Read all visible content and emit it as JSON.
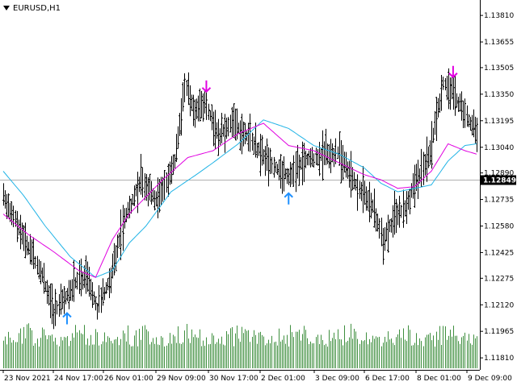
{
  "chart": {
    "symbol_label": "EURUSD,H1",
    "current_price": "1.12849",
    "price_axis_labels": [
      "1.13810",
      "1.13655",
      "1.13505",
      "1.13350",
      "1.13195",
      "1.13040",
      "1.12890",
      "1.12735",
      "1.12580",
      "1.12425",
      "1.12275",
      "1.12120",
      "1.11965",
      "1.11810"
    ],
    "time_axis_labels": [
      "23 Nov 2021",
      "24 Nov 17:00",
      "26 Nov 01:00",
      "29 Nov 09:00",
      "30 Nov 17:00",
      "2 Dec 01:00",
      "3 Dec 09:00",
      "6 Dec 17:00",
      "8 Dec 01:00",
      "9 Dec 09:00"
    ],
    "signals": [
      {
        "type": "buy",
        "label": "buy-arrow",
        "color": "#1e90ff"
      },
      {
        "type": "buy",
        "label": "buy-arrow",
        "color": "#1e90ff"
      },
      {
        "type": "sell",
        "label": "sell-arrow",
        "color": "#e100e1"
      },
      {
        "type": "sell",
        "label": "sell-arrow",
        "color": "#e100e1"
      }
    ],
    "colors": {
      "bars": "#000000",
      "volume": "#3f8f3f",
      "ma_fast": "#e000e0",
      "ma_slow": "#22b4e6",
      "price_line": "#b0b0b0",
      "price_box_bg": "#000000",
      "price_box_fg": "#ffffff"
    }
  },
  "chart_data": {
    "type": "bar",
    "price_control_points": [
      [
        0,
        1.1275
      ],
      [
        10,
        1.1255
      ],
      [
        22,
        1.1232
      ],
      [
        30,
        1.1208
      ],
      [
        38,
        1.1218
      ],
      [
        44,
        1.1226
      ],
      [
        50,
        1.1228
      ],
      [
        56,
        1.121
      ],
      [
        64,
        1.1228
      ],
      [
        72,
        1.1262
      ],
      [
        82,
        1.1285
      ],
      [
        92,
        1.1272
      ],
      [
        102,
        1.1296
      ],
      [
        108,
        1.134
      ],
      [
        114,
        1.1326
      ],
      [
        120,
        1.133
      ],
      [
        128,
        1.131
      ],
      [
        136,
        1.1318
      ],
      [
        144,
        1.1312
      ],
      [
        154,
        1.13
      ],
      [
        164,
        1.129
      ],
      [
        170,
        1.1288
      ],
      [
        180,
        1.1296
      ],
      [
        190,
        1.13
      ],
      [
        200,
        1.13
      ],
      [
        210,
        1.1282
      ],
      [
        220,
        1.127
      ],
      [
        226,
        1.125
      ],
      [
        232,
        1.1262
      ],
      [
        240,
        1.127
      ],
      [
        246,
        1.1285
      ],
      [
        254,
        1.13
      ],
      [
        262,
        1.1342
      ],
      [
        268,
        1.1336
      ],
      [
        276,
        1.1322
      ],
      [
        282,
        1.1312
      ]
    ],
    "ma_fast": [
      [
        0,
        1.1265
      ],
      [
        15,
        1.1253
      ],
      [
        30,
        1.1243
      ],
      [
        45,
        1.1232
      ],
      [
        55,
        1.1228
      ],
      [
        65,
        1.125
      ],
      [
        75,
        1.1265
      ],
      [
        85,
        1.1275
      ],
      [
        95,
        1.1285
      ],
      [
        110,
        1.1298
      ],
      [
        125,
        1.1302
      ],
      [
        140,
        1.1312
      ],
      [
        155,
        1.1318
      ],
      [
        170,
        1.1305
      ],
      [
        185,
        1.1302
      ],
      [
        200,
        1.1295
      ],
      [
        215,
        1.1288
      ],
      [
        225,
        1.1285
      ],
      [
        235,
        1.128
      ],
      [
        245,
        1.1281
      ],
      [
        255,
        1.129
      ],
      [
        265,
        1.1306
      ],
      [
        275,
        1.1302
      ],
      [
        282,
        1.13
      ]
    ],
    "ma_slow": [
      [
        0,
        1.129
      ],
      [
        12,
        1.1276
      ],
      [
        25,
        1.1258
      ],
      [
        40,
        1.124
      ],
      [
        55,
        1.1228
      ],
      [
        65,
        1.1232
      ],
      [
        75,
        1.1248
      ],
      [
        85,
        1.1258
      ],
      [
        100,
        1.1278
      ],
      [
        115,
        1.1288
      ],
      [
        125,
        1.1295
      ],
      [
        140,
        1.1306
      ],
      [
        155,
        1.132
      ],
      [
        170,
        1.1315
      ],
      [
        185,
        1.1305
      ],
      [
        200,
        1.13
      ],
      [
        215,
        1.1292
      ],
      [
        225,
        1.1283
      ],
      [
        235,
        1.1278
      ],
      [
        245,
        1.128
      ],
      [
        255,
        1.1282
      ],
      [
        265,
        1.1296
      ],
      [
        275,
        1.1305
      ],
      [
        282,
        1.1306
      ]
    ],
    "volume_scale": [
      0.2,
      1.0
    ],
    "ylim": [
      1.1174,
      1.139
    ]
  }
}
